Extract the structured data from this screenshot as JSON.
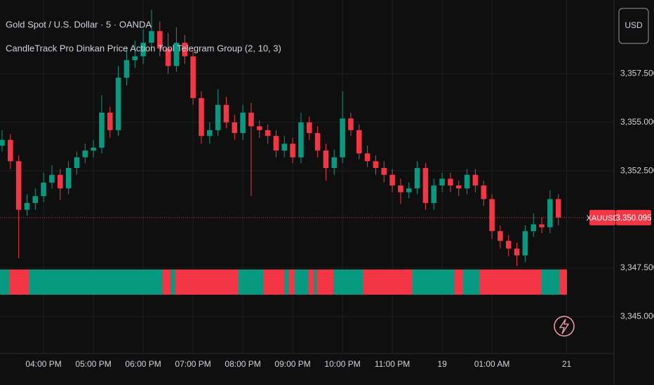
{
  "chart_data": {
    "type": "candlestick",
    "title": "Gold Spot / U.S. Dollar · 5 · OANDA",
    "subtitle": "CandleTrack Pro Dinkan Price Action Tool Telegram Group (2, 10, 3)",
    "currency": "USD",
    "symbol_label": "XAUUSD",
    "last_price": 3350.095,
    "last_price_label": "3,350.095",
    "up_color": "#089981",
    "down_color": "#f23645",
    "grid": true,
    "ylim": [
      3343.1,
      3361.3
    ],
    "yticks": [
      {
        "value": 3357.5,
        "label": "3,357.500"
      },
      {
        "value": 3355,
        "label": "3,355.000"
      },
      {
        "value": 3352.5,
        "label": "3,352.500"
      },
      {
        "value": 3347.5,
        "label": "3,347.500"
      },
      {
        "value": 3345,
        "label": "3,345.000"
      }
    ],
    "xlim": [
      -0.25,
      73.7
    ],
    "xticks": [
      {
        "value": 5,
        "label": "04:00 PM"
      },
      {
        "value": 11,
        "label": "05:00 PM"
      },
      {
        "value": 17,
        "label": "06:00 PM"
      },
      {
        "value": 23,
        "label": "07:00 PM"
      },
      {
        "value": 29,
        "label": "08:00 PM"
      },
      {
        "value": 35,
        "label": "09:00 PM"
      },
      {
        "value": 41,
        "label": "10:00 PM"
      },
      {
        "value": 47,
        "label": "11:00 PM"
      },
      {
        "value": 53,
        "label": "19"
      },
      {
        "value": 59,
        "label": "01:00 AM"
      },
      {
        "value": 68,
        "label": "21"
      }
    ],
    "open": [
      3353.8,
      3354.1,
      3353.0,
      3350.5,
      3350.85,
      3351.2,
      3351.9,
      3352.3,
      3351.6,
      3352.65,
      3353.2,
      3353.55,
      3353.7,
      3355.5,
      3354.6,
      3357.3,
      3358.2,
      3358.4,
      3359.1,
      3359.7,
      3358.8,
      3357.9,
      3359.1,
      3358.4,
      3356.25,
      3354.3,
      3354.6,
      3355.9,
      3355.0,
      3354.45,
      3355.5,
      3354.8,
      3354.6,
      3354.3,
      3353.55,
      3353.9,
      3353.2,
      3355.0,
      3354.45,
      3353.55,
      3352.65,
      3353.2,
      3355.2,
      3354.6,
      3353.4,
      3353.0,
      3352.65,
      3352.3,
      3351.75,
      3351.4,
      3351.6,
      3352.65,
      3350.85,
      3351.75,
      3352.1,
      3351.75,
      3351.6,
      3352.3,
      3351.75,
      3351.05,
      3349.4,
      3348.9,
      3348.5,
      3348.15,
      3349.4,
      3349.75,
      3349.6,
      3351.05
    ],
    "high": [
      3354.6,
      3354.4,
      3353.3,
      3351.3,
      3351.6,
      3352.4,
      3352.8,
      3352.6,
      3353.0,
      3353.5,
      3353.9,
      3354.1,
      3356.4,
      3355.8,
      3357.9,
      3358.9,
      3359.2,
      3359.8,
      3360.8,
      3360.2,
      3359.6,
      3359.9,
      3359.5,
      3358.7,
      3356.6,
      3355.0,
      3356.7,
      3356.3,
      3355.4,
      3355.9,
      3356.0,
      3355.1,
      3354.9,
      3354.6,
      3354.3,
      3354.2,
      3355.5,
      3355.3,
      3354.8,
      3353.9,
      3353.6,
      3356.6,
      3355.5,
      3354.9,
      3353.8,
      3353.3,
      3353.0,
      3352.6,
      3352.1,
      3351.9,
      3353.0,
      3352.9,
      3352.1,
      3352.4,
      3352.4,
      3352.0,
      3352.6,
      3352.6,
      3352.0,
      3351.3,
      3349.7,
      3349.2,
      3348.8,
      3349.7,
      3350.3,
      3350.1,
      3351.5,
      3351.3
    ],
    "low": [
      3353.5,
      3352.6,
      3348.0,
      3350.2,
      3350.5,
      3350.9,
      3351.6,
      3351.0,
      3351.3,
      3352.3,
      3352.9,
      3353.2,
      3353.4,
      3354.2,
      3354.3,
      3356.9,
      3357.8,
      3358.0,
      3358.7,
      3358.4,
      3357.5,
      3357.6,
      3358.0,
      3355.9,
      3353.9,
      3353.9,
      3354.3,
      3354.7,
      3354.1,
      3354.1,
      3351.2,
      3354.2,
      3353.9,
      3353.2,
      3353.2,
      3352.9,
      3352.9,
      3354.1,
      3353.2,
      3352.0,
      3352.3,
      3352.9,
      3354.3,
      3353.1,
      3352.7,
      3352.3,
      3351.9,
      3351.4,
      3350.8,
      3351.1,
      3351.3,
      3350.5,
      3350.5,
      3351.4,
      3351.4,
      3351.2,
      3351.3,
      3351.4,
      3350.7,
      3349.0,
      3348.5,
      3348.1,
      3347.6,
      3347.8,
      3349.1,
      3349.3,
      3349.3,
      3349.7
    ],
    "close": [
      3354.1,
      3353.0,
      3350.5,
      3350.85,
      3351.2,
      3351.9,
      3352.3,
      3351.6,
      3352.65,
      3353.2,
      3353.55,
      3353.7,
      3355.5,
      3354.6,
      3357.3,
      3358.2,
      3358.4,
      3359.1,
      3359.7,
      3358.8,
      3357.9,
      3359.1,
      3358.4,
      3356.25,
      3354.3,
      3354.6,
      3355.9,
      3355.0,
      3354.45,
      3355.5,
      3354.8,
      3354.6,
      3354.3,
      3353.55,
      3353.9,
      3353.2,
      3355.0,
      3354.45,
      3353.55,
      3352.65,
      3353.2,
      3355.2,
      3354.6,
      3353.4,
      3353.0,
      3352.65,
      3352.3,
      3351.75,
      3351.4,
      3351.6,
      3352.65,
      3350.85,
      3351.75,
      3352.1,
      3351.75,
      3351.6,
      3352.3,
      3351.75,
      3351.05,
      3349.4,
      3348.9,
      3348.5,
      3348.15,
      3349.4,
      3349.75,
      3349.6,
      3351.05,
      3350.1
    ]
  }
}
